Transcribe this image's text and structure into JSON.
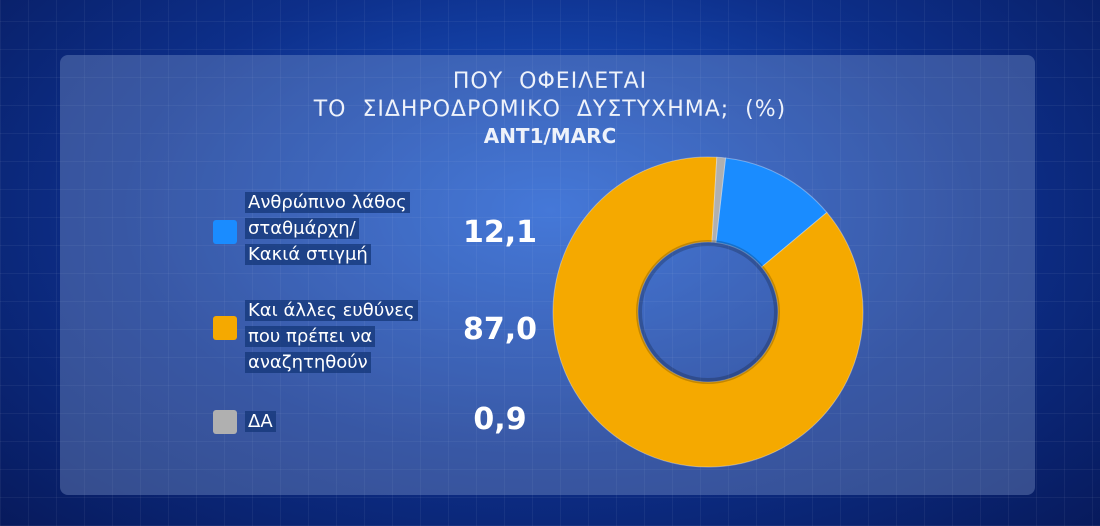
{
  "chart_data": {
    "type": "pie",
    "title": "ΠΟΥ  ΟΦΕΙΛΕΤΑΙ\nΤΟ  ΣΙΔΗΡΟΔΡΟΜΙΚΟ  ΔΥΣΤΥΧΗΜΑ;  (%)",
    "subtitle": "ANT1/MARC",
    "categories": [
      "Ανθρώπινο λάθος\nσταθμάρχη/\nΚακιά στιγμή",
      "Και άλλες ευθύνες\nπου πρέπει να\nαναζητηθούν",
      "ΔΑ"
    ],
    "values": [
      12.1,
      87.0,
      0.9
    ],
    "value_labels": [
      "12,1",
      "87,0",
      "0,9"
    ],
    "colors": [
      "#1a8cff",
      "#f5a900",
      "#b0b0b0"
    ]
  }
}
